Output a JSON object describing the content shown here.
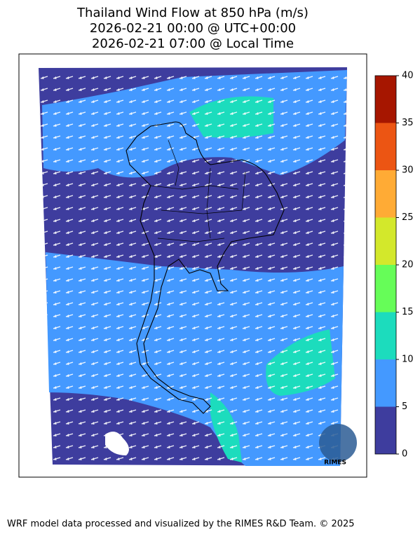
{
  "header": {
    "title_lines": [
      "Thailand Wind Flow at 850 hPa (m/s)",
      "2026-02-21 00:00 @ UTC+00:00",
      "2026-02-21 07:00 @ Local Time"
    ]
  },
  "colorbar": {
    "ticks": [
      0,
      5,
      10,
      15,
      20,
      25,
      30,
      35,
      40
    ],
    "colors": [
      "#3e3d9e",
      "#4499ff",
      "#1cdcbd",
      "#66fd58",
      "#d3e82b",
      "#ffab35",
      "#ec5513",
      "#a61600"
    ]
  },
  "logo": "RIMES",
  "footer": "WRF model data processed and visualized by the RIMES R&D Team. © 2025"
}
